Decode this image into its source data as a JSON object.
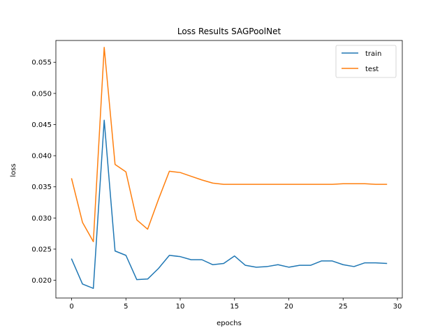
{
  "chart_data": {
    "type": "line",
    "title": "Loss Results SAGPoolNet",
    "xlabel": "epochs",
    "ylabel": "loss",
    "xlim": [
      -1.45,
      30.45
    ],
    "ylim": [
      0.01715,
      0.0585
    ],
    "xticks": [
      0,
      5,
      10,
      15,
      20,
      25,
      30
    ],
    "yticks": [
      0.02,
      0.025,
      0.03,
      0.035,
      0.04,
      0.045,
      0.05,
      0.055
    ],
    "xtick_labels": [
      "0",
      "5",
      "10",
      "15",
      "20",
      "25",
      "30"
    ],
    "ytick_labels": [
      "0.020",
      "0.025",
      "0.030",
      "0.035",
      "0.040",
      "0.045",
      "0.050",
      "0.055"
    ],
    "grid": false,
    "legend_position": "top-right",
    "x": [
      0,
      1,
      2,
      3,
      4,
      5,
      6,
      7,
      8,
      9,
      10,
      11,
      12,
      13,
      14,
      15,
      16,
      17,
      18,
      19,
      20,
      21,
      22,
      23,
      24,
      25,
      26,
      27,
      28,
      29
    ],
    "series": [
      {
        "name": "train",
        "color": "#1f77b4",
        "values": [
          0.0234,
          0.0194,
          0.0187,
          0.0457,
          0.0247,
          0.024,
          0.0201,
          0.0202,
          0.0219,
          0.024,
          0.0238,
          0.0233,
          0.0233,
          0.0225,
          0.0227,
          0.0239,
          0.0224,
          0.0221,
          0.0222,
          0.0225,
          0.0221,
          0.0224,
          0.0224,
          0.0231,
          0.0231,
          0.0225,
          0.0222,
          0.0228,
          0.0228,
          0.0227
        ]
      },
      {
        "name": "test",
        "color": "#ff7f0e",
        "values": [
          0.0363,
          0.0293,
          0.0262,
          0.0574,
          0.0386,
          0.0374,
          0.0297,
          0.0282,
          0.033,
          0.0375,
          0.0373,
          0.0367,
          0.0361,
          0.0356,
          0.0354,
          0.0354,
          0.0354,
          0.0354,
          0.0354,
          0.0354,
          0.0354,
          0.0354,
          0.0354,
          0.0354,
          0.0354,
          0.0355,
          0.0355,
          0.0355,
          0.0354,
          0.0354
        ]
      }
    ]
  }
}
